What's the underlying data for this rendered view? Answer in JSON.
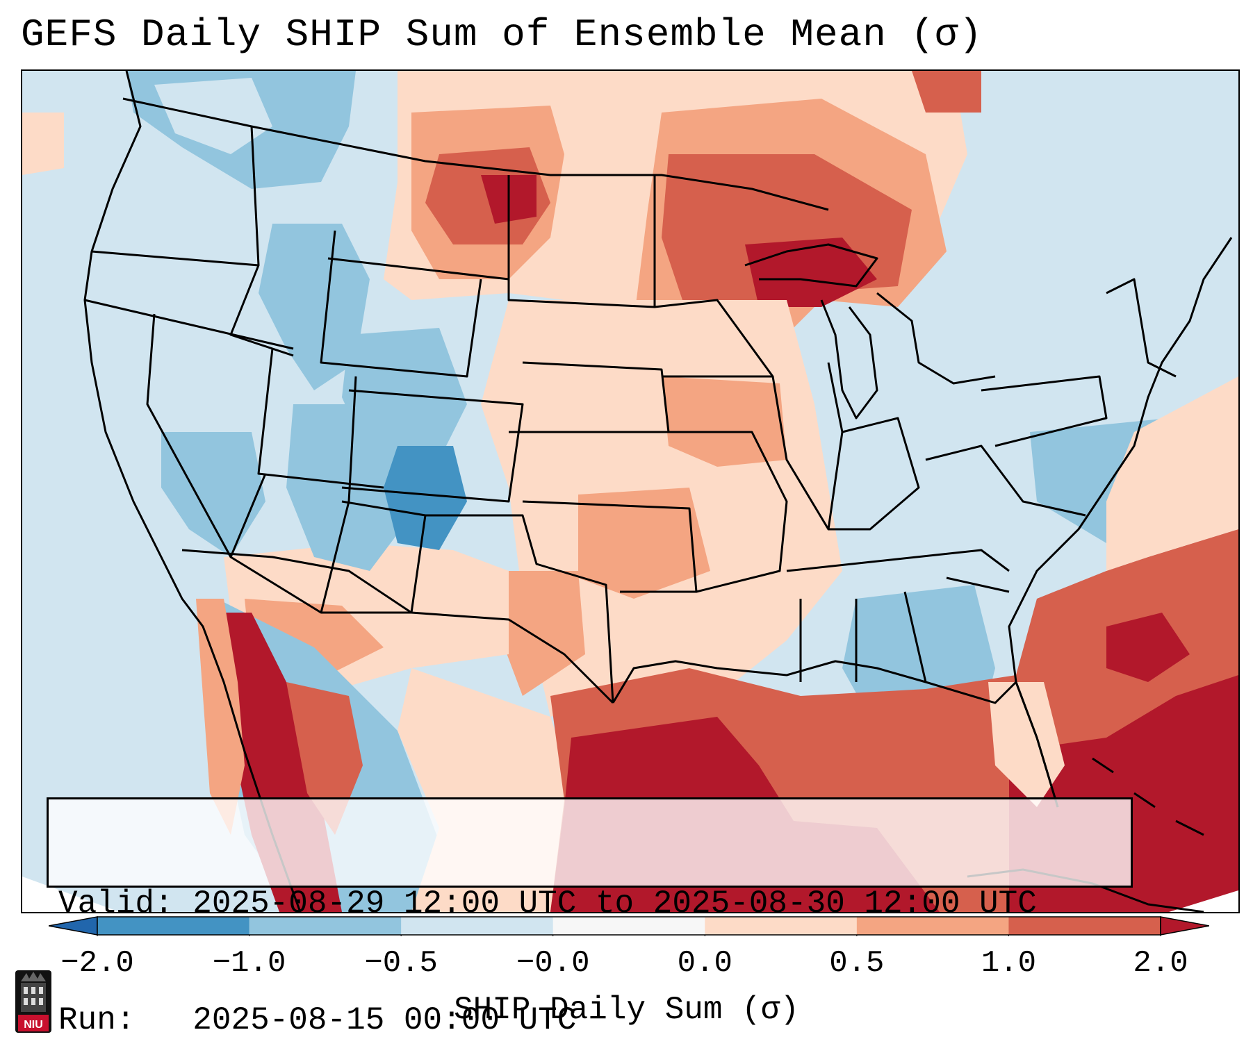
{
  "title": "GEFS Daily SHIP Sum of Ensemble Mean (σ)",
  "info": {
    "valid_label": "Valid:",
    "valid_value": "2025-08-29 12:00 UTC to 2025-08-30 12:00 UTC",
    "run_label": "Run:",
    "run_value": "2025-08-15 00:00 UTC"
  },
  "colorbar": {
    "label": "SHIP Daily Sum (σ)",
    "ticks": [
      "−2.0",
      "−1.0",
      "−0.5",
      "−0.0",
      "0.0",
      "0.5",
      "1.0",
      "2.0"
    ],
    "bins": [
      {
        "range": "< -2.0",
        "color": "#2166ac"
      },
      {
        "range": "-2.0 to -1.0",
        "color": "#4393c3"
      },
      {
        "range": "-1.0 to -0.5",
        "color": "#92c5de"
      },
      {
        "range": "-0.5 to -0.0",
        "color": "#d1e5f0"
      },
      {
        "range": "-0.0 to 0.0",
        "color": "#f7f7f7"
      },
      {
        "range": "0.0 to 0.5",
        "color": "#fddbc7"
      },
      {
        "range": "0.5 to 1.0",
        "color": "#f4a582"
      },
      {
        "range": "1.0 to 2.0",
        "color": "#d6604d"
      },
      {
        "range": "> 2.0",
        "color": "#b2182b"
      }
    ]
  },
  "regions": [
    {
      "name": "pacific-northwest",
      "value": "-0.5 to -0.0"
    },
    {
      "name": "idaho-wyoming",
      "value": "-1.0 to -0.5"
    },
    {
      "name": "colorado",
      "value": "-2.0 to -1.0"
    },
    {
      "name": "northern-plains",
      "value": "0.0 to 0.5"
    },
    {
      "name": "montana-north-dakota-border",
      "value": "> 2.0"
    },
    {
      "name": "upper-great-lakes",
      "value": "> 2.0"
    },
    {
      "name": "minnesota-wisconsin",
      "value": "1.0 to 2.0"
    },
    {
      "name": "central-plains",
      "value": "0.0 to 0.5"
    },
    {
      "name": "southeast",
      "value": "-1.0 to -0.5"
    },
    {
      "name": "gulf-of-mexico",
      "value": "> 2.0"
    },
    {
      "name": "western-atlantic",
      "value": "1.0 to 2.0"
    },
    {
      "name": "gulf-of-california",
      "value": "> 2.0"
    },
    {
      "name": "northern-mexico",
      "value": "-1.0 to -0.5"
    }
  ],
  "logo": {
    "text": "NIU",
    "name": "Northern Illinois University"
  }
}
